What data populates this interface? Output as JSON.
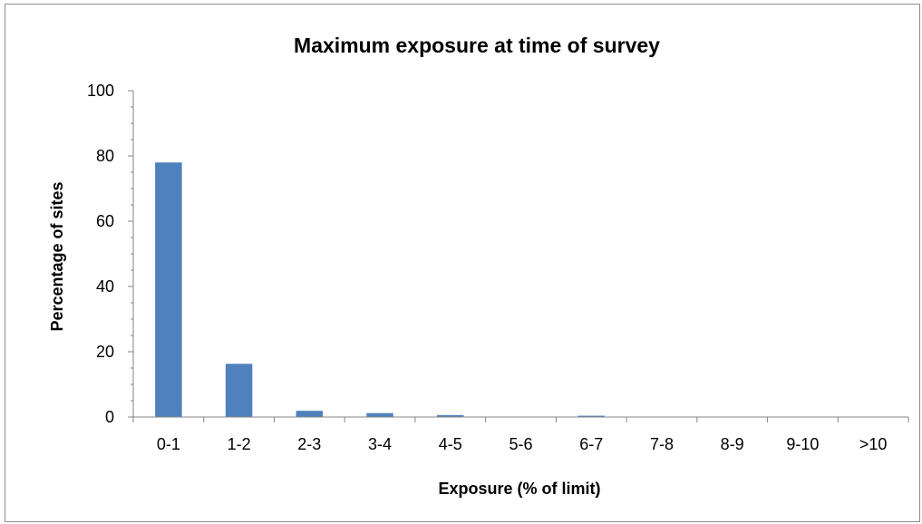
{
  "chart_data": {
    "type": "bar",
    "title": "Maximum exposure at time of survey",
    "xlabel": "Exposure (% of limit)",
    "ylabel": "Percentage of sites",
    "categories": [
      "0-1",
      "1-2",
      "2-3",
      "3-4",
      "4-5",
      "5-6",
      "6-7",
      "7-8",
      "8-9",
      "9-10",
      ">10"
    ],
    "values": [
      78.0,
      16.3,
      1.9,
      1.2,
      0.6,
      0,
      0.4,
      0,
      0,
      0,
      0
    ],
    "ylim": [
      0,
      100
    ],
    "yticks": [
      "0",
      "20",
      "40",
      "60",
      "80",
      "100"
    ],
    "grid": false,
    "legend": "none",
    "bar_color": "#4f81bd",
    "axis_color": "#868686"
  }
}
